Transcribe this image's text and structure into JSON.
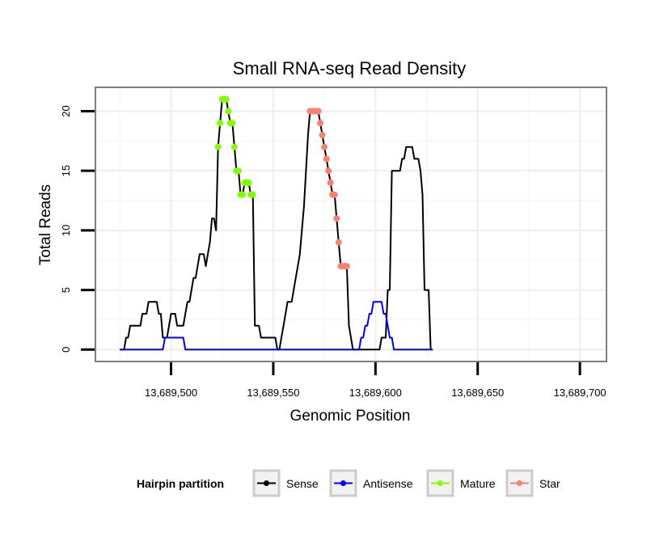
{
  "chart_data": {
    "type": "line",
    "title": "Small RNA-seq Read Density",
    "xlabel": "Genomic Position",
    "ylabel": "Total Reads",
    "xlim": [
      13689463,
      13689713
    ],
    "ylim": [
      -1,
      22
    ],
    "x_ticks": [
      {
        "value": 13689500,
        "label": "13,689,500"
      },
      {
        "value": 13689550,
        "label": "13,689,550"
      },
      {
        "value": 13689600,
        "label": "13,689,600"
      },
      {
        "value": 13689650,
        "label": "13,689,650"
      },
      {
        "value": 13689700,
        "label": "13,689,700"
      }
    ],
    "y_ticks": [
      {
        "value": 0,
        "label": "0"
      },
      {
        "value": 5,
        "label": "5"
      },
      {
        "value": 10,
        "label": "10"
      },
      {
        "value": 15,
        "label": "15"
      },
      {
        "value": 20,
        "label": "20"
      }
    ],
    "grid": true,
    "legend": {
      "title": "Hairpin partition",
      "position": "bottom",
      "entries": [
        {
          "name": "Sense",
          "color": "#000000"
        },
        {
          "name": "Antisense",
          "color": "#0000ff"
        },
        {
          "name": "Mature",
          "color": "#7fff00"
        },
        {
          "name": "Star",
          "color": "#fa8072"
        }
      ]
    },
    "series": [
      {
        "name": "Sense",
        "color": "#000000",
        "points": [
          [
            13689475,
            0
          ],
          [
            13689477,
            0
          ],
          [
            13689478,
            1
          ],
          [
            13689479,
            1
          ],
          [
            13689480,
            2
          ],
          [
            13689481,
            2
          ],
          [
            13689482,
            2
          ],
          [
            13689483,
            2
          ],
          [
            13689484,
            2
          ],
          [
            13689485,
            2
          ],
          [
            13689486,
            3
          ],
          [
            13689487,
            3
          ],
          [
            13689488,
            3
          ],
          [
            13689489,
            4
          ],
          [
            13689490,
            4
          ],
          [
            13689491,
            4
          ],
          [
            13689492,
            4
          ],
          [
            13689493,
            4
          ],
          [
            13689494,
            3
          ],
          [
            13689495,
            3
          ],
          [
            13689496,
            1
          ],
          [
            13689497,
            1
          ],
          [
            13689498,
            1
          ],
          [
            13689499,
            2
          ],
          [
            13689500,
            3
          ],
          [
            13689501,
            3
          ],
          [
            13689502,
            3
          ],
          [
            13689503,
            2
          ],
          [
            13689504,
            2
          ],
          [
            13689505,
            2
          ],
          [
            13689506,
            2
          ],
          [
            13689507,
            3
          ],
          [
            13689508,
            4
          ],
          [
            13689509,
            4
          ],
          [
            13689510,
            5
          ],
          [
            13689511,
            6
          ],
          [
            13689512,
            6
          ],
          [
            13689513,
            7
          ],
          [
            13689514,
            8
          ],
          [
            13689515,
            8
          ],
          [
            13689516,
            8
          ],
          [
            13689517,
            7
          ],
          [
            13689518,
            8
          ],
          [
            13689519,
            9
          ],
          [
            13689520,
            11
          ],
          [
            13689521,
            11
          ],
          [
            13689522,
            10
          ],
          [
            13689523,
            17
          ],
          [
            13689524,
            19
          ],
          [
            13689525,
            21
          ],
          [
            13689526,
            21
          ],
          [
            13689527,
            21
          ],
          [
            13689528,
            20
          ],
          [
            13689529,
            19
          ],
          [
            13689530,
            19
          ],
          [
            13689531,
            17
          ],
          [
            13689532,
            15
          ],
          [
            13689533,
            15
          ],
          [
            13689534,
            13
          ],
          [
            13689535,
            13
          ],
          [
            13689536,
            14
          ],
          [
            13689537,
            14
          ],
          [
            13689538,
            14
          ],
          [
            13689539,
            13
          ],
          [
            13689540,
            13
          ],
          [
            13689541,
            2
          ],
          [
            13689542,
            2
          ],
          [
            13689543,
            2
          ],
          [
            13689544,
            1
          ],
          [
            13689545,
            1
          ],
          [
            13689546,
            1
          ],
          [
            13689547,
            1
          ],
          [
            13689548,
            1
          ],
          [
            13689549,
            1
          ],
          [
            13689550,
            1
          ],
          [
            13689551,
            1
          ],
          [
            13689552,
            0
          ],
          [
            13689553,
            0
          ],
          [
            13689554,
            1
          ],
          [
            13689555,
            2
          ],
          [
            13689556,
            3
          ],
          [
            13689557,
            4
          ],
          [
            13689558,
            4
          ],
          [
            13689559,
            4
          ],
          [
            13689560,
            5
          ],
          [
            13689561,
            6
          ],
          [
            13689562,
            7
          ],
          [
            13689563,
            8
          ],
          [
            13689564,
            10
          ],
          [
            13689565,
            12
          ],
          [
            13689566,
            15
          ],
          [
            13689567,
            18
          ],
          [
            13689568,
            20
          ],
          [
            13689569,
            20
          ],
          [
            13689570,
            20
          ],
          [
            13689571,
            20
          ],
          [
            13689572,
            20
          ],
          [
            13689573,
            19
          ],
          [
            13689574,
            18
          ],
          [
            13689575,
            17
          ],
          [
            13689576,
            16
          ],
          [
            13689577,
            15
          ],
          [
            13689578,
            14
          ],
          [
            13689579,
            13
          ],
          [
            13689580,
            13
          ],
          [
            13689581,
            11
          ],
          [
            13689582,
            9
          ],
          [
            13689583,
            7
          ],
          [
            13689584,
            7
          ],
          [
            13689585,
            7
          ],
          [
            13689586,
            7
          ],
          [
            13689587,
            2
          ],
          [
            13689588,
            1
          ],
          [
            13689589,
            0
          ],
          [
            13689590,
            0
          ],
          [
            13689591,
            0
          ],
          [
            13689592,
            0
          ],
          [
            13689593,
            0
          ],
          [
            13689594,
            0
          ],
          [
            13689595,
            0
          ],
          [
            13689596,
            0
          ],
          [
            13689597,
            0
          ],
          [
            13689598,
            0
          ],
          [
            13689599,
            0
          ],
          [
            13689600,
            0
          ],
          [
            13689601,
            0
          ],
          [
            13689602,
            0
          ],
          [
            13689603,
            1
          ],
          [
            13689604,
            1
          ],
          [
            13689605,
            1
          ],
          [
            13689606,
            5
          ],
          [
            13689607,
            5
          ],
          [
            13689608,
            15
          ],
          [
            13689609,
            15
          ],
          [
            13689610,
            15
          ],
          [
            13689611,
            15
          ],
          [
            13689612,
            15
          ],
          [
            13689613,
            16
          ],
          [
            13689614,
            16
          ],
          [
            13689615,
            17
          ],
          [
            13689616,
            17
          ],
          [
            13689617,
            17
          ],
          [
            13689618,
            17
          ],
          [
            13689619,
            16
          ],
          [
            13689620,
            16
          ],
          [
            13689621,
            16
          ],
          [
            13689622,
            15
          ],
          [
            13689623,
            13
          ],
          [
            13689624,
            5
          ],
          [
            13689625,
            5
          ],
          [
            13689626,
            5
          ],
          [
            13689627,
            0
          ],
          [
            13689628,
            0
          ]
        ]
      },
      {
        "name": "Antisense",
        "color": "#0000ff",
        "points": [
          [
            13689475,
            0
          ],
          [
            13689496,
            0
          ],
          [
            13689497,
            1
          ],
          [
            13689506,
            1
          ],
          [
            13689507,
            0
          ],
          [
            13689592,
            0
          ],
          [
            13689593,
            1
          ],
          [
            13689594,
            1
          ],
          [
            13689595,
            2
          ],
          [
            13689596,
            2
          ],
          [
            13689597,
            3
          ],
          [
            13689598,
            3
          ],
          [
            13689599,
            4
          ],
          [
            13689600,
            4
          ],
          [
            13689601,
            4
          ],
          [
            13689602,
            4
          ],
          [
            13689603,
            4
          ],
          [
            13689604,
            3
          ],
          [
            13689605,
            3
          ],
          [
            13689606,
            2
          ],
          [
            13689607,
            1
          ],
          [
            13689608,
            1
          ],
          [
            13689609,
            0
          ],
          [
            13689628,
            0
          ]
        ]
      },
      {
        "name": "Mature",
        "color": "#7fff00",
        "points": [
          [
            13689523,
            17
          ],
          [
            13689524,
            19
          ],
          [
            13689525,
            21
          ],
          [
            13689526,
            21
          ],
          [
            13689527,
            21
          ],
          [
            13689528,
            20
          ],
          [
            13689529,
            19
          ],
          [
            13689530,
            19
          ],
          [
            13689531,
            17
          ],
          [
            13689532,
            15
          ],
          [
            13689533,
            15
          ],
          [
            13689534,
            13
          ],
          [
            13689535,
            13
          ],
          [
            13689536,
            14
          ],
          [
            13689537,
            14
          ],
          [
            13689538,
            14
          ],
          [
            13689539,
            13
          ],
          [
            13689540,
            13
          ]
        ]
      },
      {
        "name": "Star",
        "color": "#fa8072",
        "points": [
          [
            13689568,
            20
          ],
          [
            13689569,
            20
          ],
          [
            13689570,
            20
          ],
          [
            13689571,
            20
          ],
          [
            13689572,
            20
          ],
          [
            13689573,
            19
          ],
          [
            13689574,
            18
          ],
          [
            13689575,
            17
          ],
          [
            13689576,
            16
          ],
          [
            13689577,
            15
          ],
          [
            13689578,
            14
          ],
          [
            13689579,
            13
          ],
          [
            13689580,
            13
          ],
          [
            13689581,
            11
          ],
          [
            13689582,
            9
          ],
          [
            13689583,
            7
          ],
          [
            13689584,
            7
          ],
          [
            13689585,
            7
          ],
          [
            13689586,
            7
          ]
        ]
      }
    ]
  }
}
